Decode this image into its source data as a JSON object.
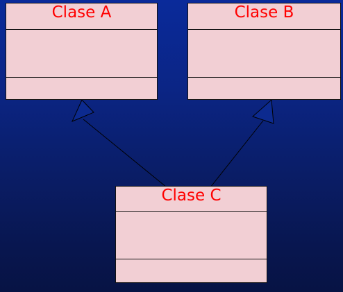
{
  "diagram": {
    "classes": [
      {
        "id": "a",
        "name": "Clase A"
      },
      {
        "id": "b",
        "name": "Clase B"
      },
      {
        "id": "c",
        "name": "Clase C"
      }
    ],
    "relations": [
      {
        "type": "generalization",
        "from": "Clase C",
        "to": "Clase A"
      },
      {
        "type": "generalization",
        "from": "Clase C",
        "to": "Clase B"
      }
    ],
    "colors": {
      "class_fill": "#f2cfd4",
      "class_title": "#ff0000",
      "background_top": "#0a2a9a",
      "background_bottom": "#071344"
    }
  }
}
